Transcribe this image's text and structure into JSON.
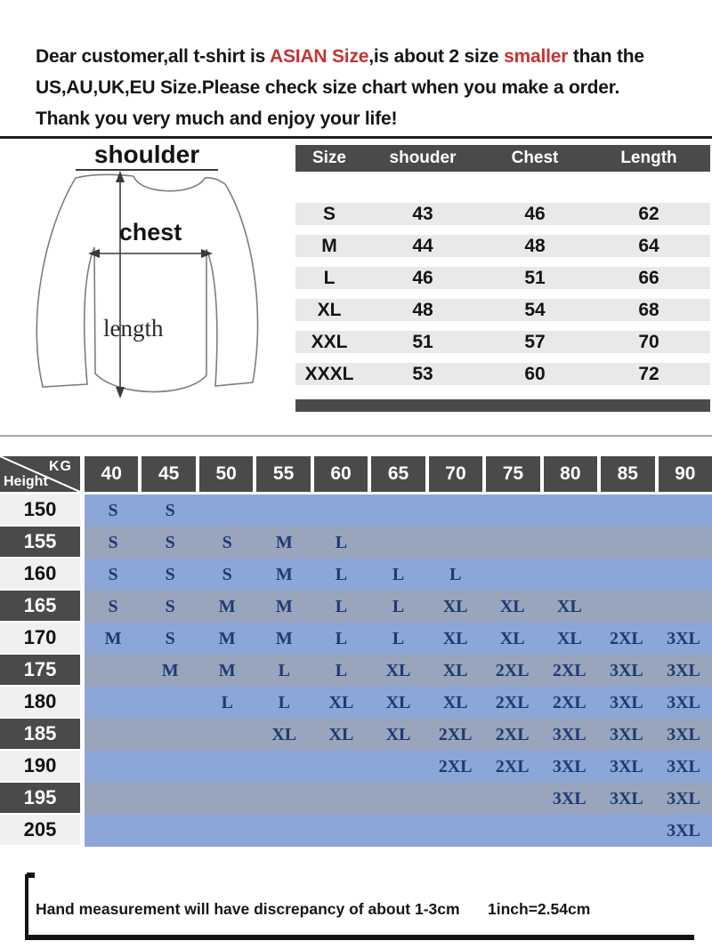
{
  "notice": {
    "line1_parts": [
      {
        "text": "Dear customer,all t-shirt is ",
        "red": false
      },
      {
        "text": "ASIAN Size",
        "red": true
      },
      {
        "text": ",is about 2 size ",
        "red": false
      },
      {
        "text": "smaller",
        "red": true
      },
      {
        "text": " than the",
        "red": false
      }
    ],
    "line2": "US,AU,UK,EU Size.Please check size chart when you make a order.",
    "line3": "Thank you very much and enjoy your life!"
  },
  "diagram": {
    "shoulder_label": "shoulder",
    "chest_label": "chest",
    "length_label": "length"
  },
  "size_table": {
    "headers": [
      "Size",
      "shouder",
      "Chest",
      "Length"
    ],
    "rows": [
      [
        "S",
        "43",
        "46",
        "62"
      ],
      [
        "M",
        "44",
        "48",
        "64"
      ],
      [
        "L",
        "46",
        "51",
        "66"
      ],
      [
        "XL",
        "48",
        "54",
        "68"
      ],
      [
        "XXL",
        "51",
        "57",
        "70"
      ],
      [
        "XXXL",
        "53",
        "60",
        "72"
      ]
    ]
  },
  "matrix": {
    "corner_top": "KG",
    "corner_bottom": "Height",
    "weights": [
      "40",
      "45",
      "50",
      "55",
      "60",
      "65",
      "70",
      "75",
      "80",
      "85",
      "90"
    ],
    "rows": [
      {
        "height": "150",
        "cells": [
          "S",
          "S",
          "",
          "",
          "",
          "",
          "",
          "",
          "",
          "",
          ""
        ]
      },
      {
        "height": "155",
        "cells": [
          "S",
          "S",
          "S",
          "M",
          "L",
          "",
          "",
          "",
          "",
          "",
          ""
        ]
      },
      {
        "height": "160",
        "cells": [
          "S",
          "S",
          "S",
          "M",
          "L",
          "L",
          "L",
          "",
          "",
          "",
          ""
        ]
      },
      {
        "height": "165",
        "cells": [
          "S",
          "S",
          "M",
          "M",
          "L",
          "L",
          "XL",
          "XL",
          "XL",
          "",
          ""
        ]
      },
      {
        "height": "170",
        "cells": [
          "M",
          "S",
          "M",
          "M",
          "L",
          "L",
          "XL",
          "XL",
          "XL",
          "2XL",
          "3XL"
        ]
      },
      {
        "height": "175",
        "cells": [
          "",
          "M",
          "M",
          "L",
          "L",
          "XL",
          "XL",
          "2XL",
          "2XL",
          "3XL",
          "3XL"
        ]
      },
      {
        "height": "180",
        "cells": [
          "",
          "",
          "L",
          "L",
          "XL",
          "XL",
          "XL",
          "2XL",
          "2XL",
          "3XL",
          "3XL"
        ]
      },
      {
        "height": "185",
        "cells": [
          "",
          "",
          "",
          "XL",
          "XL",
          "XL",
          "2XL",
          "2XL",
          "3XL",
          "3XL",
          "3XL"
        ]
      },
      {
        "height": "190",
        "cells": [
          "",
          "",
          "",
          "",
          "",
          "",
          "2XL",
          "2XL",
          "3XL",
          "3XL",
          "3XL"
        ]
      },
      {
        "height": "195",
        "cells": [
          "",
          "",
          "",
          "",
          "",
          "",
          "",
          "",
          "3XL",
          "3XL",
          "3XL"
        ]
      },
      {
        "height": "205",
        "cells": [
          "",
          "",
          "",
          "",
          "",
          "",
          "",
          "",
          "",
          "",
          "3XL"
        ]
      }
    ]
  },
  "footer": {
    "note": "Hand measurement will have discrepancy of about  1-3cm",
    "conversion": "1inch=2.54cm"
  },
  "colors": {
    "accent_red": "#c43434",
    "header_dark": "#4a4a4a",
    "table_stripe": "#e9e9e9",
    "matrix_band_light": "#8da6d8",
    "matrix_band_dark": "#99a5bc",
    "matrix_letter_navy": "#1d3a72"
  }
}
